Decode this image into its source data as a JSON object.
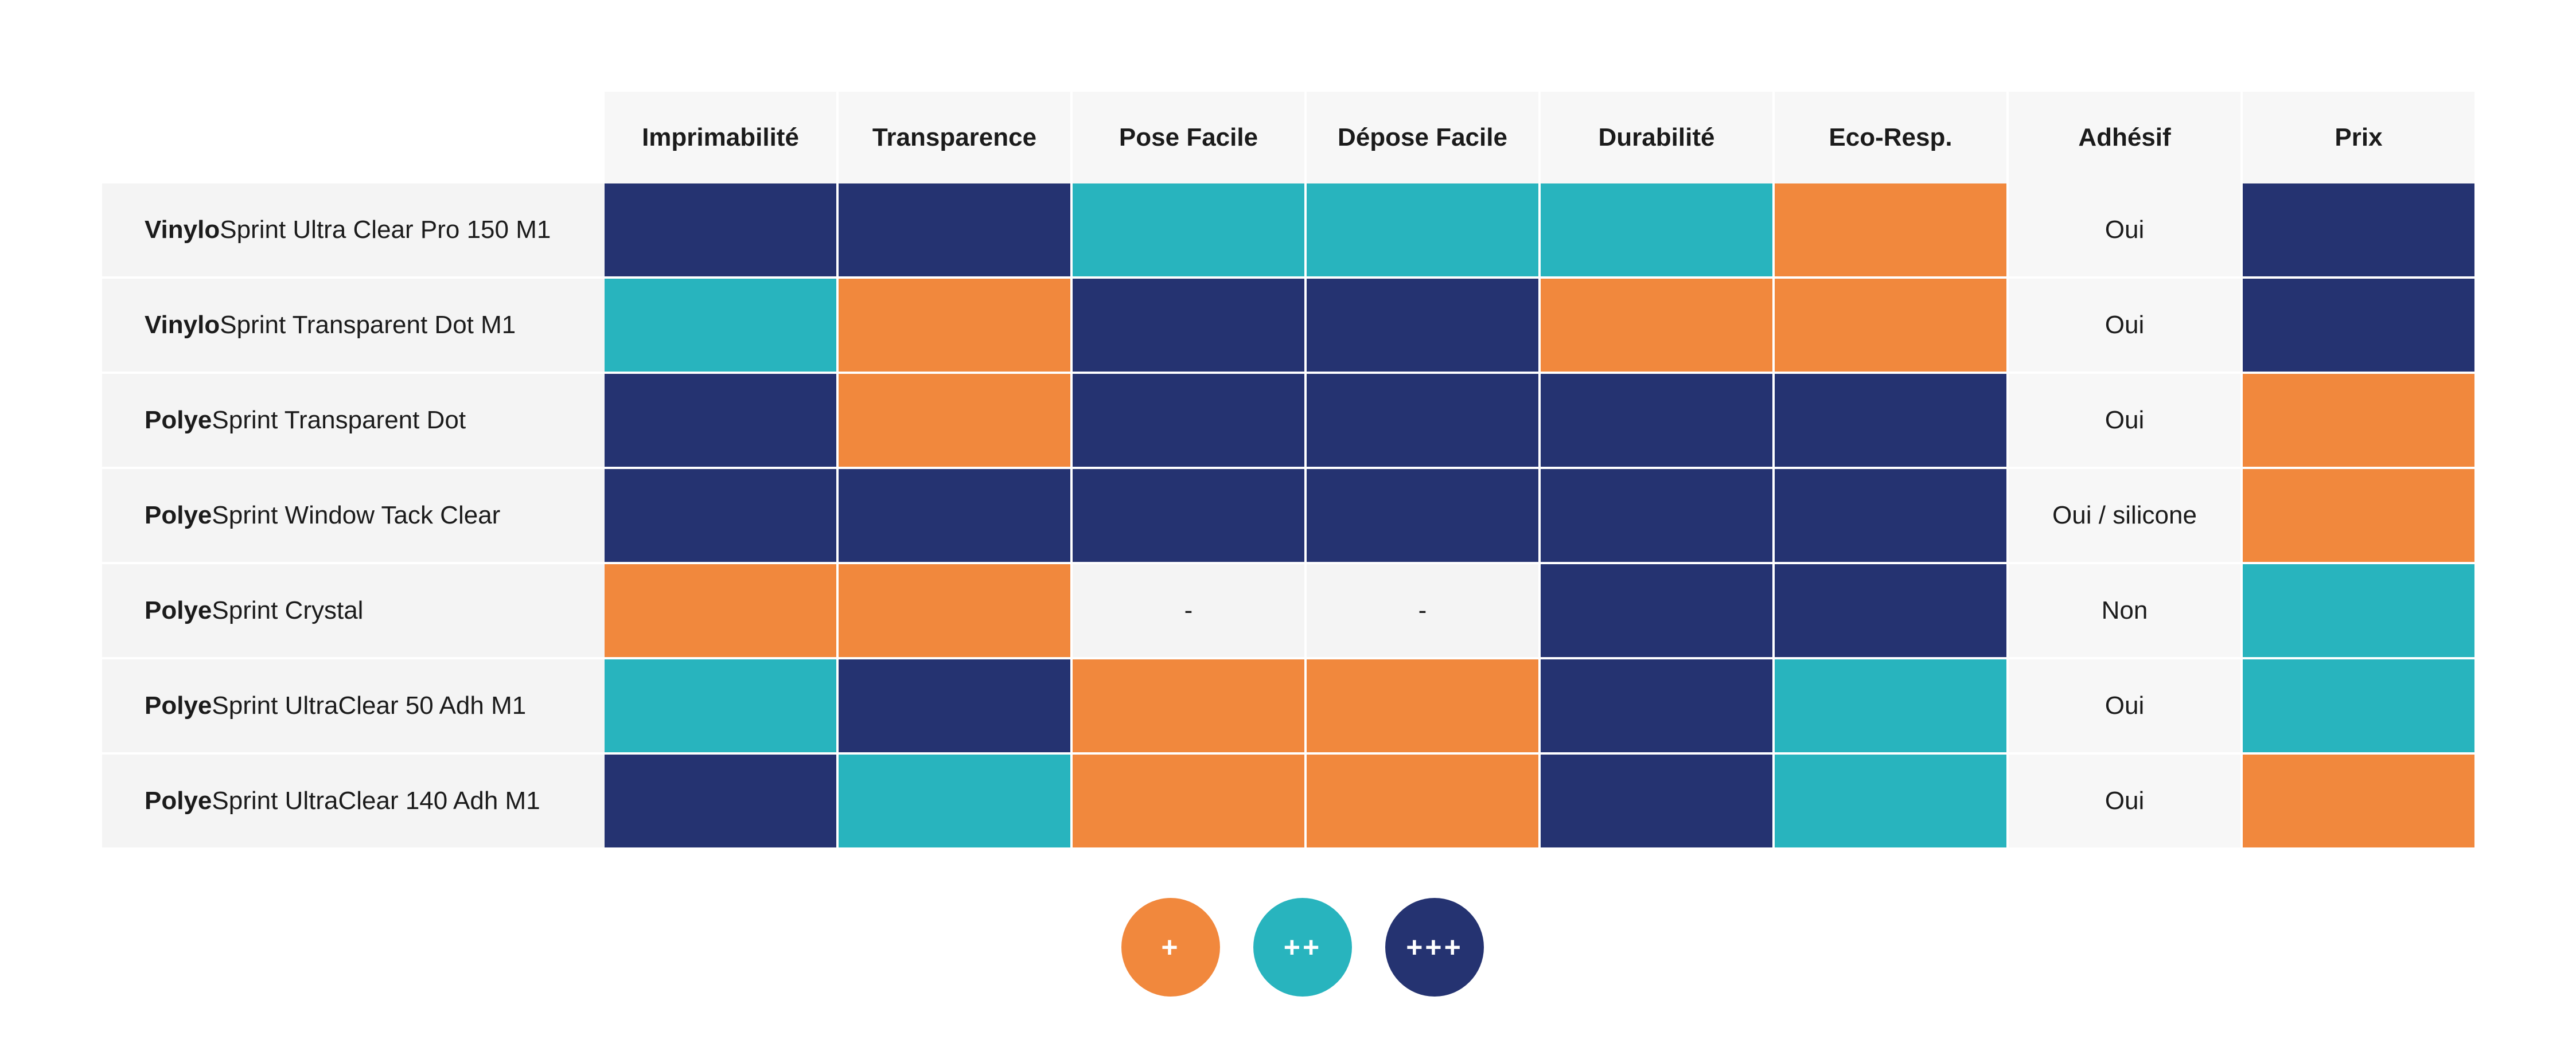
{
  "colors": {
    "low": "#f1883d",
    "mid": "#28b4be",
    "high": "#253371"
  },
  "columns": [
    "Imprimabilité",
    "Transparence",
    "Pose Facile",
    "Dépose Facile",
    "Durabilité",
    "Eco-Resp.",
    "Adhésif",
    "Prix"
  ],
  "rows": [
    {
      "brand": "Vinylo",
      "rest": "Sprint Ultra Clear Pro 150 M1",
      "levels": [
        3,
        3,
        2,
        2,
        2,
        1
      ],
      "adhesif": "Oui",
      "prix": 3
    },
    {
      "brand": "Vinylo",
      "rest": "Sprint Transparent Dot M1",
      "levels": [
        2,
        1,
        3,
        3,
        1,
        1
      ],
      "adhesif": "Oui",
      "prix": 3
    },
    {
      "brand": "Polye",
      "rest": "Sprint Transparent Dot",
      "levels": [
        3,
        1,
        3,
        3,
        3,
        3
      ],
      "adhesif": "Oui",
      "prix": 1
    },
    {
      "brand": "Polye",
      "rest": "Sprint Window Tack Clear",
      "levels": [
        3,
        3,
        3,
        3,
        3,
        3
      ],
      "adhesif": "Oui / silicone",
      "prix": 1
    },
    {
      "brand": "Polye",
      "rest": "Sprint Crystal",
      "levels": [
        1,
        1,
        "-",
        "-",
        3,
        3
      ],
      "adhesif": "Non",
      "prix": 2
    },
    {
      "brand": "Polye",
      "rest": "Sprint UltraClear 50 Adh M1",
      "levels": [
        2,
        3,
        1,
        1,
        3,
        2
      ],
      "adhesif": "Oui",
      "prix": 2
    },
    {
      "brand": "Polye",
      "rest": "Sprint UltraClear 140 Adh M1",
      "levels": [
        3,
        2,
        1,
        1,
        3,
        2
      ],
      "adhesif": "Oui",
      "prix": 1
    }
  ],
  "legend": [
    {
      "label": "+",
      "level": 1
    },
    {
      "label": "++",
      "level": 2
    },
    {
      "label": "+++",
      "level": 3
    }
  ]
}
